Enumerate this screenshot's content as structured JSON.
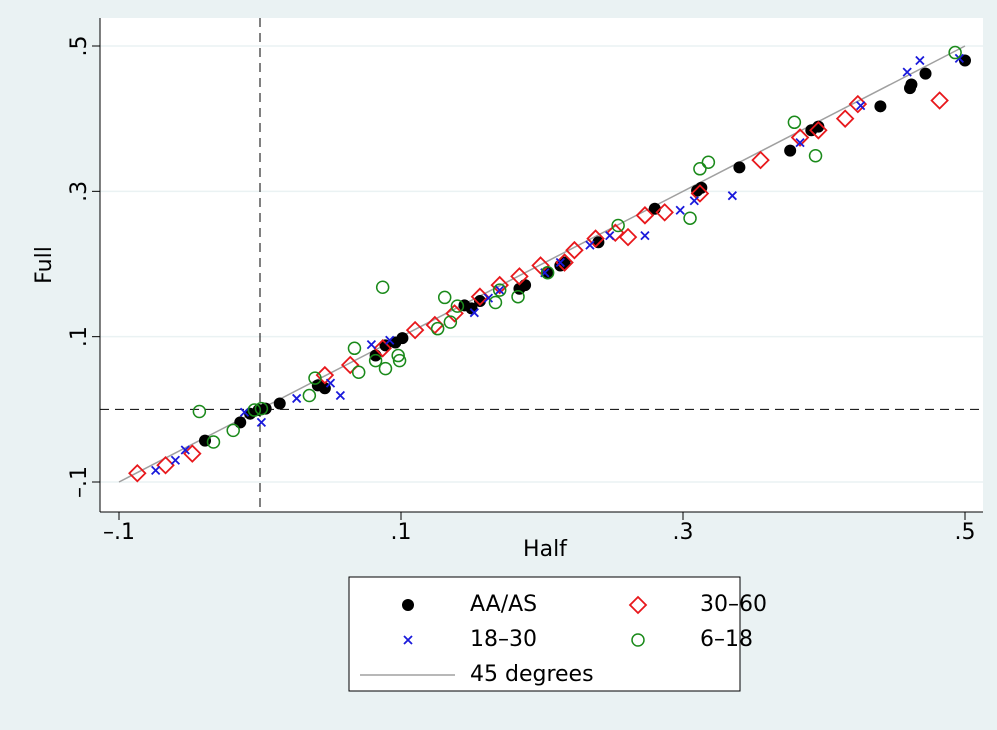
{
  "chart_data": {
    "type": "scatter",
    "x_label": "Half",
    "y_label": "Full",
    "xlim": [
      -0.1,
      0.5
    ],
    "ylim": [
      -0.1,
      0.5
    ],
    "xticks": [
      {
        "value": -0.1,
        "label": "–.1"
      },
      {
        "value": 0.1,
        "label": ".1"
      },
      {
        "value": 0.3,
        "label": ".3"
      },
      {
        "value": 0.5,
        "label": ".5"
      }
    ],
    "yticks": [
      {
        "value": -0.1,
        "label": "–.1"
      },
      {
        "value": 0.1,
        "label": ".1"
      },
      {
        "value": 0.3,
        "label": ".3"
      },
      {
        "value": 0.5,
        "label": ".5"
      }
    ],
    "grid": true,
    "xline": 0,
    "yline": 0,
    "series": [
      {
        "name": "AA/AS",
        "color": "#000000",
        "marker": "filled-circle",
        "x": [
          -0.039,
          -0.014,
          -0.007,
          -0.001,
          0.004,
          0.014,
          0.041,
          0.046,
          0.082,
          0.089,
          0.096,
          0.101,
          0.145,
          0.15,
          0.156,
          0.184,
          0.188,
          0.204,
          0.213,
          0.216,
          0.24,
          0.28,
          0.31,
          0.313,
          0.34,
          0.376,
          0.391,
          0.396,
          0.44,
          0.461,
          0.462,
          0.472,
          0.5
        ],
        "values": [
          -0.043,
          -0.018,
          -0.006,
          -0.001,
          0.001,
          0.008,
          0.033,
          0.029,
          0.074,
          0.088,
          0.092,
          0.098,
          0.143,
          0.139,
          0.149,
          0.166,
          0.171,
          0.188,
          0.198,
          0.202,
          0.23,
          0.276,
          0.301,
          0.305,
          0.333,
          0.356,
          0.384,
          0.389,
          0.417,
          0.442,
          0.447,
          0.462,
          0.48
        ]
      },
      {
        "name": "30–60",
        "color": "#e8181c",
        "marker": "diamond",
        "x": [
          -0.087,
          -0.067,
          -0.048,
          0.046,
          0.064,
          0.087,
          0.11,
          0.124,
          0.138,
          0.156,
          0.17,
          0.184,
          0.199,
          0.216,
          0.223,
          0.238,
          0.252,
          0.261,
          0.273,
          0.287,
          0.312,
          0.355,
          0.383,
          0.396,
          0.415,
          0.424,
          0.482
        ],
        "values": [
          -0.088,
          -0.077,
          -0.061,
          0.047,
          0.061,
          0.084,
          0.109,
          0.116,
          0.132,
          0.155,
          0.171,
          0.183,
          0.198,
          0.202,
          0.219,
          0.235,
          0.243,
          0.237,
          0.267,
          0.271,
          0.297,
          0.343,
          0.374,
          0.384,
          0.4,
          0.42,
          0.425
        ]
      },
      {
        "name": "18–30",
        "color": "#1a1adb",
        "marker": "x",
        "x": [
          -0.074,
          -0.06,
          -0.053,
          -0.011,
          0.001,
          0.026,
          0.05,
          0.057,
          0.079,
          0.092,
          0.152,
          0.162,
          0.17,
          0.202,
          0.213,
          0.234,
          0.248,
          0.273,
          0.298,
          0.308,
          0.335,
          0.383,
          0.426,
          0.459,
          0.468,
          0.496
        ],
        "values": [
          -0.084,
          -0.07,
          -0.056,
          -0.004,
          -0.018,
          0.015,
          0.036,
          0.019,
          0.089,
          0.095,
          0.133,
          0.153,
          0.164,
          0.188,
          0.202,
          0.226,
          0.239,
          0.239,
          0.274,
          0.287,
          0.294,
          0.367,
          0.418,
          0.464,
          0.48,
          0.483
        ]
      },
      {
        "name": "6–18",
        "color": "#1a8a1a",
        "marker": "circle",
        "x": [
          -0.043,
          -0.033,
          -0.019,
          -0.004,
          0.001,
          0.035,
          0.039,
          0.067,
          0.07,
          0.082,
          0.087,
          0.089,
          0.098,
          0.099,
          0.126,
          0.131,
          0.135,
          0.14,
          0.167,
          0.17,
          0.183,
          0.204,
          0.254,
          0.305,
          0.312,
          0.318,
          0.379,
          0.394,
          0.493
        ],
        "values": [
          -0.003,
          -0.045,
          -0.029,
          -0.001,
          0.001,
          0.019,
          0.043,
          0.084,
          0.051,
          0.067,
          0.168,
          0.056,
          0.074,
          0.067,
          0.111,
          0.154,
          0.12,
          0.142,
          0.147,
          0.164,
          0.155,
          0.188,
          0.253,
          0.263,
          0.331,
          0.34,
          0.395,
          0.349,
          0.491
        ]
      }
    ],
    "reference_line": {
      "name": "45 degrees",
      "color": "#a0a0a0",
      "x": [
        -0.1,
        0.5
      ],
      "y": [
        -0.1,
        0.5
      ]
    }
  }
}
